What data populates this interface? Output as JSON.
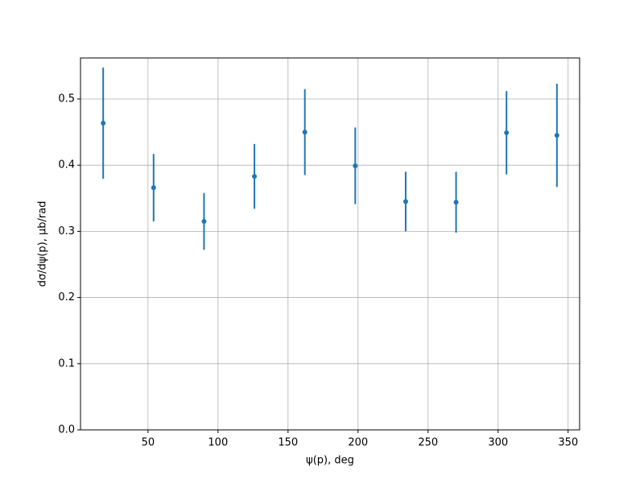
{
  "chart_data": {
    "type": "errorbar",
    "x_label": "ψ(p), deg",
    "y_label": "dσ/dψ(p), μb/rad",
    "x": [
      18,
      54,
      90,
      126,
      162,
      198,
      234,
      270,
      306,
      342
    ],
    "series": [
      {
        "color": "#1f77b4",
        "values": [
          0.4635,
          0.366,
          0.315,
          0.383,
          0.45,
          0.399,
          0.345,
          0.344,
          0.449,
          0.445
        ],
        "errors": [
          0.084,
          0.051,
          0.043,
          0.049,
          0.065,
          0.058,
          0.045,
          0.046,
          0.063,
          0.078
        ]
      }
    ],
    "xlim": [
      1.8,
      358.2
    ],
    "ylim": [
      0,
      0.562
    ],
    "xticks": [
      50,
      100,
      150,
      200,
      250,
      300,
      350
    ],
    "yticks": [
      {
        "value": 0,
        "label": "0.0"
      },
      0.1,
      0.2,
      0.3,
      0.4,
      0.5
    ],
    "grid": true
  }
}
